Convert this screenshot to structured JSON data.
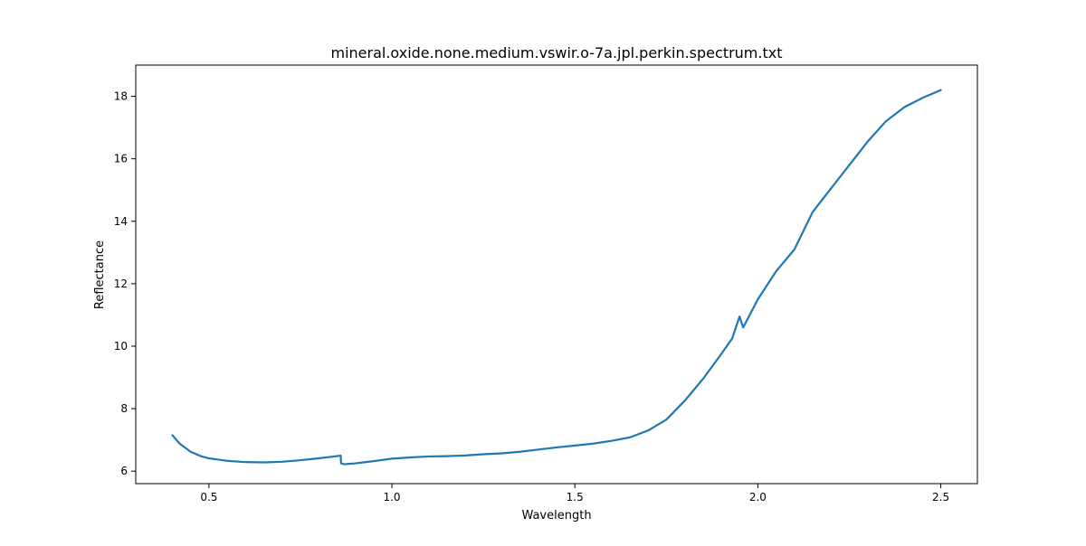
{
  "chart_data": {
    "type": "line",
    "title": "mineral.oxide.none.medium.vswir.o-7a.jpl.perkin.spectrum.txt",
    "xlabel": "Wavelength",
    "ylabel": "Reflectance",
    "xlim": [
      0.3,
      2.6
    ],
    "ylim": [
      5.6,
      19.0
    ],
    "x_ticks": [
      0.5,
      1.0,
      1.5,
      2.0,
      2.5
    ],
    "x_tick_labels": [
      "0.5",
      "1.0",
      "1.5",
      "2.0",
      "2.5"
    ],
    "y_ticks": [
      6,
      8,
      10,
      12,
      14,
      16,
      18
    ],
    "y_tick_labels": [
      "6",
      "8",
      "10",
      "12",
      "14",
      "16",
      "18"
    ],
    "grid": false,
    "series": [
      {
        "color": "#1f77b4",
        "x": [
          0.4,
          0.42,
          0.45,
          0.48,
          0.5,
          0.55,
          0.6,
          0.65,
          0.7,
          0.75,
          0.8,
          0.85,
          0.86,
          0.861,
          0.87,
          0.9,
          0.95,
          1.0,
          1.05,
          1.1,
          1.15,
          1.2,
          1.25,
          1.3,
          1.35,
          1.4,
          1.45,
          1.5,
          1.55,
          1.6,
          1.65,
          1.7,
          1.75,
          1.8,
          1.85,
          1.9,
          1.93,
          1.95,
          1.96,
          2.0,
          2.05,
          2.1,
          2.15,
          2.2,
          2.25,
          2.3,
          2.35,
          2.4,
          2.45,
          2.5
        ],
        "y": [
          7.15,
          6.88,
          6.62,
          6.47,
          6.41,
          6.33,
          6.29,
          6.28,
          6.3,
          6.35,
          6.41,
          6.48,
          6.5,
          6.25,
          6.22,
          6.25,
          6.32,
          6.4,
          6.44,
          6.47,
          6.48,
          6.5,
          6.54,
          6.57,
          6.62,
          6.69,
          6.76,
          6.82,
          6.88,
          6.97,
          7.08,
          7.3,
          7.65,
          8.25,
          8.95,
          9.75,
          10.25,
          10.95,
          10.6,
          11.5,
          12.4,
          13.1,
          14.3,
          15.05,
          15.8,
          16.55,
          17.2,
          17.65,
          17.95,
          18.2
        ]
      }
    ]
  }
}
